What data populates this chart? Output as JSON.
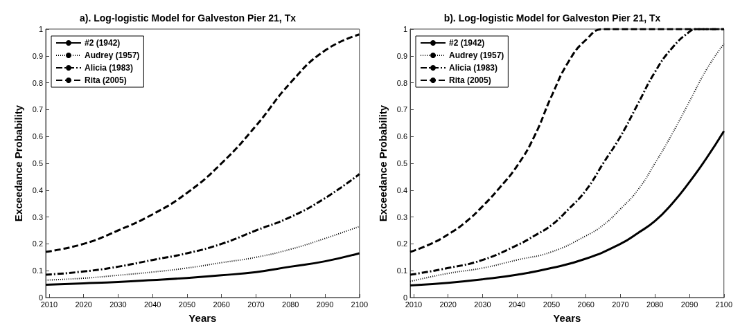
{
  "chart_data": [
    {
      "type": "line",
      "title": "a). Log-logistic Model for Galveston Pier 21, Tx",
      "xlabel": "Years",
      "ylabel": "Exceedance Probability",
      "xlim": [
        2009,
        2100
      ],
      "xticks": [
        2010,
        2020,
        2030,
        2040,
        2050,
        2060,
        2070,
        2080,
        2090,
        2100
      ],
      "ylim": [
        0,
        1
      ],
      "yticks": [
        0,
        0.1,
        0.2,
        0.3,
        0.4,
        0.5,
        0.6,
        0.7,
        0.8,
        0.9,
        1
      ],
      "grid": false,
      "legend": "top left",
      "marker": "none",
      "x": [
        2009,
        2020,
        2030,
        2040,
        2050,
        2060,
        2070,
        2080,
        2090,
        2100
      ],
      "series": [
        {
          "name": "#2 (1942)",
          "color": "#000000",
          "line_style": "solid",
          "values": [
            0.048,
            0.053,
            0.058,
            0.065,
            0.073,
            0.083,
            0.095,
            0.115,
            0.135,
            0.165
          ]
        },
        {
          "name": "Audrey (1957)",
          "color": "#000000",
          "line_style": "dotted",
          "values": [
            0.065,
            0.072,
            0.083,
            0.095,
            0.11,
            0.13,
            0.15,
            0.18,
            0.22,
            0.265
          ]
        },
        {
          "name": "Alicia (1983)",
          "color": "#000000",
          "line_style": "dashdot",
          "values": [
            0.085,
            0.097,
            0.115,
            0.14,
            0.165,
            0.2,
            0.25,
            0.3,
            0.37,
            0.46
          ]
        },
        {
          "name": "Rita (2005)",
          "color": "#000000",
          "line_style": "dashed",
          "values": [
            0.17,
            0.2,
            0.25,
            0.31,
            0.39,
            0.5,
            0.64,
            0.8,
            0.92,
            0.98
          ]
        }
      ]
    },
    {
      "type": "line",
      "title": "b). Log-logistic Model for Galveston Pier 21, Tx",
      "xlabel": "Years",
      "ylabel": "Exceedance Probability",
      "xlim": [
        2009,
        2100
      ],
      "xticks": [
        2010,
        2020,
        2030,
        2040,
        2050,
        2060,
        2070,
        2080,
        2090,
        2100
      ],
      "ylim": [
        0,
        1
      ],
      "yticks": [
        0,
        0.1,
        0.2,
        0.3,
        0.4,
        0.5,
        0.6,
        0.7,
        0.8,
        0.9,
        1
      ],
      "grid": false,
      "legend": "top left",
      "marker": "none",
      "series": [
        {
          "name": "#2 (1942)",
          "color": "#000000",
          "line_style": "solid",
          "x": [
            2009,
            2020,
            2030,
            2040,
            2050,
            2060,
            2070,
            2075,
            2080,
            2085,
            2090,
            2095,
            2100
          ],
          "values": [
            0.045,
            0.055,
            0.068,
            0.085,
            0.11,
            0.145,
            0.2,
            0.24,
            0.285,
            0.35,
            0.43,
            0.52,
            0.62
          ]
        },
        {
          "name": "Audrey (1957)",
          "color": "#000000",
          "line_style": "dotted",
          "x": [
            2009,
            2020,
            2030,
            2040,
            2050,
            2060,
            2065,
            2070,
            2075,
            2080,
            2085,
            2090,
            2095,
            2100
          ],
          "values": [
            0.06,
            0.09,
            0.11,
            0.14,
            0.17,
            0.23,
            0.27,
            0.33,
            0.4,
            0.5,
            0.61,
            0.73,
            0.85,
            0.945
          ]
        },
        {
          "name": "Alicia (1983)",
          "color": "#000000",
          "line_style": "dashdot",
          "x": [
            2009,
            2020,
            2030,
            2040,
            2045,
            2050,
            2055,
            2060,
            2065,
            2070,
            2075,
            2080,
            2085,
            2090,
            2092,
            2100
          ],
          "values": [
            0.085,
            0.11,
            0.14,
            0.195,
            0.23,
            0.27,
            0.33,
            0.4,
            0.5,
            0.6,
            0.72,
            0.84,
            0.93,
            0.99,
            1,
            1
          ]
        },
        {
          "name": "Rita (2005)",
          "color": "#000000",
          "line_style": "dashed",
          "x": [
            2009,
            2015,
            2020,
            2025,
            2030,
            2035,
            2040,
            2045,
            2050,
            2055,
            2060,
            2065,
            2070,
            2100
          ],
          "values": [
            0.17,
            0.2,
            0.235,
            0.28,
            0.34,
            0.41,
            0.49,
            0.6,
            0.75,
            0.88,
            0.96,
            1,
            1,
            1
          ]
        }
      ]
    }
  ]
}
